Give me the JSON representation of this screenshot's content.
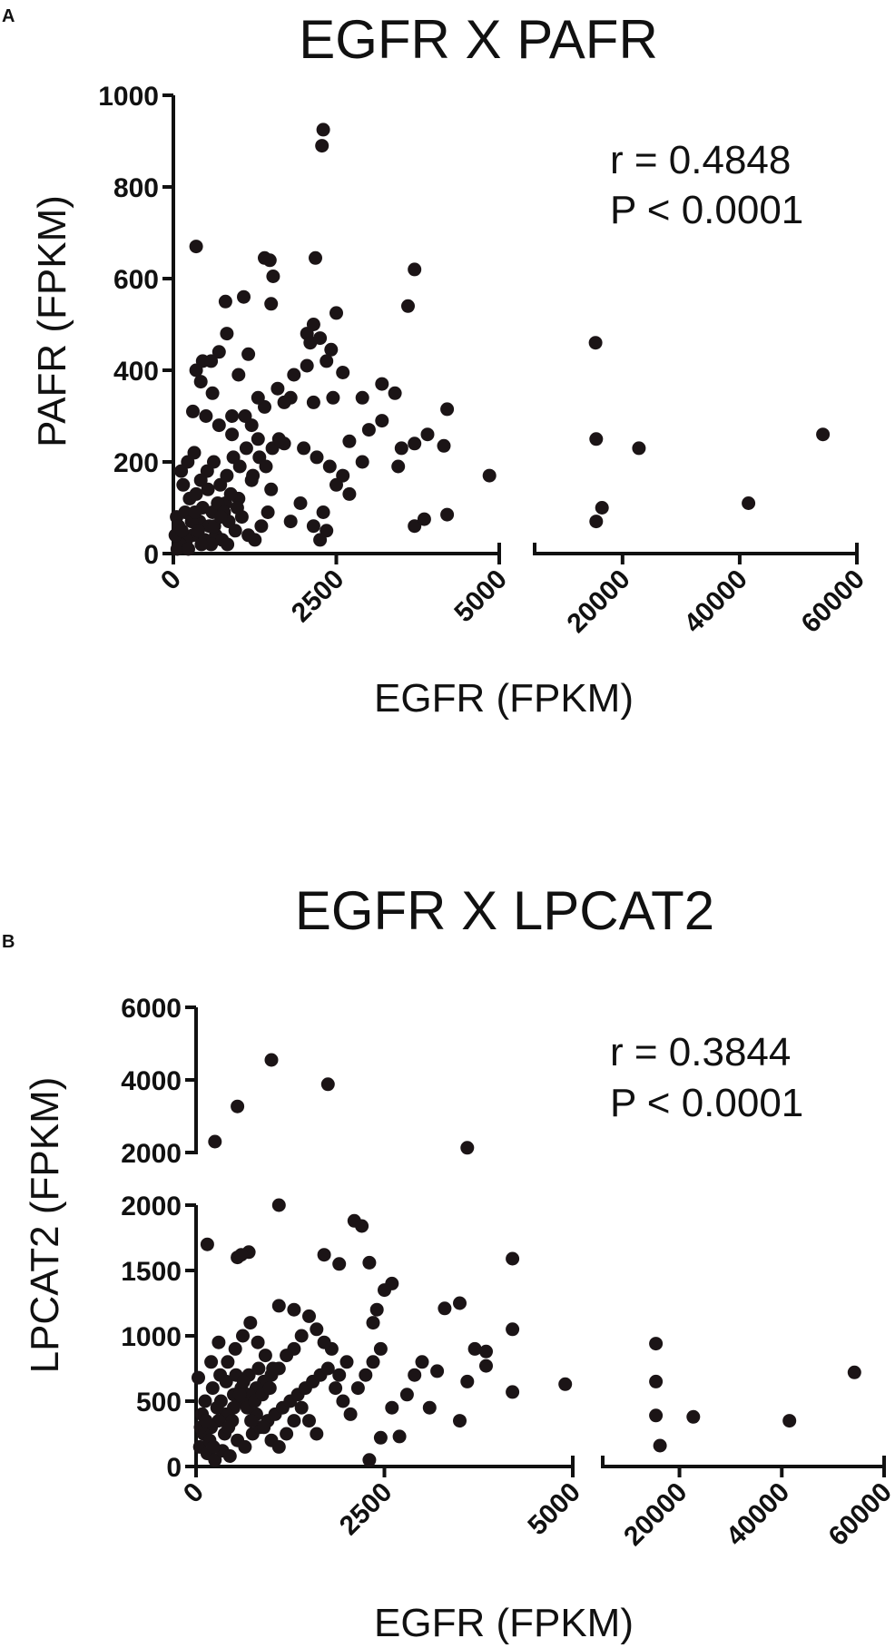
{
  "chart_data": [
    {
      "panel": "A",
      "type": "scatter",
      "title": "EGFR X PAFR",
      "xlabel": "EGFR (FPKM)",
      "ylabel": "PAFR (FPKM)",
      "annotation": [
        "r = 0.4848",
        "P < 0.0001"
      ],
      "x_segments": [
        {
          "range": [
            0,
            5000
          ],
          "ticks": [
            0,
            2500,
            5000
          ]
        },
        {
          "range": [
            5000,
            60000
          ],
          "ticks": [
            20000,
            40000,
            60000
          ]
        }
      ],
      "x_ticklabels": [
        "0",
        "2500",
        "5000",
        "20000",
        "40000",
        "60000"
      ],
      "y_segments": [
        {
          "range": [
            0,
            1000
          ],
          "ticks": [
            0,
            200,
            400,
            600,
            800,
            1000
          ]
        }
      ],
      "y_ticklabels": [
        "0",
        "200",
        "400",
        "600",
        "800",
        "1000"
      ],
      "points": [
        [
          2300,
          925
        ],
        [
          2280,
          890
        ],
        [
          350,
          670
        ],
        [
          1400,
          645
        ],
        [
          1480,
          640
        ],
        [
          2180,
          645
        ],
        [
          1530,
          605
        ],
        [
          3700,
          620
        ],
        [
          1080,
          560
        ],
        [
          800,
          550
        ],
        [
          1500,
          545
        ],
        [
          2500,
          525
        ],
        [
          3600,
          540
        ],
        [
          820,
          480
        ],
        [
          2050,
          480
        ],
        [
          2100,
          460
        ],
        [
          2250,
          470
        ],
        [
          2420,
          445
        ],
        [
          700,
          440
        ],
        [
          1150,
          435
        ],
        [
          2350,
          420
        ],
        [
          450,
          420
        ],
        [
          580,
          420
        ],
        [
          2050,
          410
        ],
        [
          3200,
          370
        ],
        [
          3400,
          350
        ],
        [
          1850,
          390
        ],
        [
          2600,
          395
        ],
        [
          350,
          400
        ],
        [
          420,
          375
        ],
        [
          1000,
          390
        ],
        [
          1600,
          360
        ],
        [
          1800,
          340
        ],
        [
          2150,
          330
        ],
        [
          2450,
          340
        ],
        [
          1400,
          320
        ],
        [
          1700,
          330
        ],
        [
          2900,
          340
        ],
        [
          4200,
          315
        ],
        [
          3200,
          290
        ],
        [
          3000,
          270
        ],
        [
          3900,
          260
        ],
        [
          3500,
          230
        ],
        [
          3700,
          240
        ],
        [
          4150,
          235
        ],
        [
          3450,
          190
        ],
        [
          2700,
          245
        ],
        [
          2900,
          200
        ],
        [
          2600,
          170
        ],
        [
          4850,
          170
        ],
        [
          600,
          350
        ],
        [
          900,
          300
        ],
        [
          1200,
          280
        ],
        [
          1300,
          250
        ],
        [
          1700,
          240
        ],
        [
          2000,
          230
        ],
        [
          2200,
          210
        ],
        [
          2400,
          190
        ],
        [
          2500,
          150
        ],
        [
          2700,
          130
        ],
        [
          2300,
          90
        ],
        [
          2350,
          50
        ],
        [
          2250,
          30
        ],
        [
          1950,
          110
        ],
        [
          1800,
          70
        ],
        [
          2150,
          60
        ],
        [
          1200,
          160
        ],
        [
          1500,
          140
        ],
        [
          1000,
          120
        ],
        [
          800,
          110
        ],
        [
          600,
          90
        ],
        [
          400,
          70
        ],
        [
          300,
          40
        ],
        [
          200,
          30
        ],
        [
          100,
          20
        ],
        [
          50,
          80
        ],
        [
          150,
          150
        ],
        [
          250,
          120
        ],
        [
          350,
          130
        ],
        [
          450,
          100
        ],
        [
          550,
          60
        ],
        [
          650,
          40
        ],
        [
          750,
          30
        ],
        [
          850,
          70
        ],
        [
          950,
          50
        ],
        [
          1050,
          80
        ],
        [
          1150,
          40
        ],
        [
          1250,
          30
        ],
        [
          1350,
          60
        ],
        [
          1450,
          90
        ],
        [
          120,
          180
        ],
        [
          220,
          200
        ],
        [
          320,
          220
        ],
        [
          420,
          160
        ],
        [
          520,
          180
        ],
        [
          620,
          200
        ],
        [
          720,
          150
        ],
        [
          820,
          170
        ],
        [
          920,
          210
        ],
        [
          1020,
          190
        ],
        [
          1120,
          230
        ],
        [
          1220,
          170
        ],
        [
          1320,
          210
        ],
        [
          1420,
          190
        ],
        [
          1520,
          230
        ],
        [
          1620,
          250
        ],
        [
          80,
          60
        ],
        [
          180,
          90
        ],
        [
          280,
          70
        ],
        [
          380,
          50
        ],
        [
          480,
          30
        ],
        [
          580,
          20
        ],
        [
          680,
          110
        ],
        [
          780,
          90
        ],
        [
          880,
          130
        ],
        [
          980,
          100
        ],
        [
          30,
          40
        ],
        [
          60,
          10
        ],
        [
          130,
          50
        ],
        [
          230,
          10
        ],
        [
          330,
          90
        ],
        [
          430,
          20
        ],
        [
          530,
          140
        ],
        [
          630,
          60
        ],
        [
          730,
          80
        ],
        [
          830,
          20
        ],
        [
          900,
          260
        ],
        [
          700,
          280
        ],
        [
          500,
          300
        ],
        [
          300,
          310
        ],
        [
          1100,
          300
        ],
        [
          1300,
          340
        ],
        [
          3700,
          60
        ],
        [
          3850,
          75
        ],
        [
          4200,
          85
        ],
        [
          2150,
          500
        ],
        [
          15400,
          460
        ],
        [
          15500,
          250
        ],
        [
          15500,
          70
        ],
        [
          16500,
          100
        ],
        [
          22800,
          230
        ],
        [
          41500,
          110
        ],
        [
          54200,
          260
        ]
      ]
    },
    {
      "panel": "B",
      "type": "scatter",
      "title": "EGFR X LPCAT2",
      "xlabel": "EGFR (FPKM)",
      "ylabel": "LPCAT2 (FPKM)",
      "annotation": [
        "r = 0.3844",
        "P < 0.0001"
      ],
      "x_segments": [
        {
          "range": [
            0,
            5000
          ],
          "ticks": [
            0,
            2500,
            5000
          ]
        },
        {
          "range": [
            5000,
            60000
          ],
          "ticks": [
            20000,
            40000,
            60000
          ]
        }
      ],
      "x_ticklabels": [
        "0",
        "2500",
        "5000",
        "20000",
        "40000",
        "60000"
      ],
      "y_segments": [
        {
          "range": [
            0,
            2000
          ],
          "ticks": [
            0,
            500,
            1000,
            1500,
            2000
          ]
        },
        {
          "range": [
            2000,
            6000
          ],
          "ticks": [
            2000,
            4000,
            6000
          ]
        }
      ],
      "y_ticklabels": [
        "0",
        "500",
        "1000",
        "1500",
        "2000",
        "2000",
        "4000",
        "6000"
      ],
      "points": [
        [
          1000,
          4550
        ],
        [
          1750,
          3880
        ],
        [
          550,
          3270
        ],
        [
          250,
          2300
        ],
        [
          3600,
          2130
        ],
        [
          1100,
          2000
        ],
        [
          2100,
          1880
        ],
        [
          2200,
          1840
        ],
        [
          150,
          1700
        ],
        [
          700,
          1640
        ],
        [
          550,
          1600
        ],
        [
          600,
          1620
        ],
        [
          1700,
          1620
        ],
        [
          4200,
          1590
        ],
        [
          2300,
          1560
        ],
        [
          1900,
          1550
        ],
        [
          2600,
          1400
        ],
        [
          2500,
          1350
        ],
        [
          3300,
          1210
        ],
        [
          3500,
          1250
        ],
        [
          1100,
          1230
        ],
        [
          1300,
          1200
        ],
        [
          2400,
          1200
        ],
        [
          2350,
          1100
        ],
        [
          4200,
          1050
        ],
        [
          3700,
          900
        ],
        [
          3850,
          880
        ],
        [
          3850,
          770
        ],
        [
          4200,
          570
        ],
        [
          4900,
          630
        ],
        [
          3500,
          350
        ],
        [
          3100,
          450
        ],
        [
          2600,
          450
        ],
        [
          2450,
          220
        ],
        [
          2300,
          50
        ],
        [
          2700,
          230
        ],
        [
          2900,
          700
        ],
        [
          2800,
          550
        ],
        [
          3200,
          730
        ],
        [
          3000,
          800
        ],
        [
          3600,
          650
        ],
        [
          1900,
          700
        ],
        [
          2000,
          800
        ],
        [
          1800,
          900
        ],
        [
          1700,
          950
        ],
        [
          1600,
          1050
        ],
        [
          1500,
          1150
        ],
        [
          1400,
          1000
        ],
        [
          1300,
          900
        ],
        [
          1200,
          850
        ],
        [
          1100,
          750
        ],
        [
          1000,
          700
        ],
        [
          900,
          650
        ],
        [
          800,
          600
        ],
        [
          700,
          550
        ],
        [
          600,
          500
        ],
        [
          500,
          450
        ],
        [
          400,
          400
        ],
        [
          300,
          350
        ],
        [
          200,
          300
        ],
        [
          100,
          250
        ],
        [
          50,
          150
        ],
        [
          150,
          100
        ],
        [
          250,
          50
        ],
        [
          350,
          120
        ],
        [
          450,
          80
        ],
        [
          550,
          200
        ],
        [
          650,
          150
        ],
        [
          750,
          250
        ],
        [
          850,
          300
        ],
        [
          950,
          350
        ],
        [
          1050,
          400
        ],
        [
          1150,
          450
        ],
        [
          1250,
          500
        ],
        [
          1350,
          550
        ],
        [
          1450,
          600
        ],
        [
          1550,
          650
        ],
        [
          1650,
          700
        ],
        [
          1750,
          750
        ],
        [
          1850,
          600
        ],
        [
          1950,
          500
        ],
        [
          2050,
          400
        ],
        [
          2150,
          600
        ],
        [
          2250,
          700
        ],
        [
          2350,
          800
        ],
        [
          2450,
          900
        ],
        [
          120,
          500
        ],
        [
          220,
          600
        ],
        [
          320,
          700
        ],
        [
          420,
          800
        ],
        [
          520,
          900
        ],
        [
          620,
          1000
        ],
        [
          720,
          1100
        ],
        [
          820,
          950
        ],
        [
          920,
          850
        ],
        [
          1020,
          750
        ],
        [
          200,
          800
        ],
        [
          300,
          950
        ],
        [
          400,
          650
        ],
        [
          500,
          550
        ],
        [
          600,
          600
        ],
        [
          700,
          700
        ],
        [
          800,
          400
        ],
        [
          900,
          300
        ],
        [
          1000,
          200
        ],
        [
          1100,
          150
        ],
        [
          1200,
          250
        ],
        [
          1300,
          350
        ],
        [
          1400,
          450
        ],
        [
          1500,
          350
        ],
        [
          1600,
          250
        ],
        [
          80,
          400
        ],
        [
          180,
          200
        ],
        [
          280,
          450
        ],
        [
          380,
          250
        ],
        [
          480,
          350
        ],
        [
          580,
          550
        ],
        [
          680,
          450
        ],
        [
          780,
          500
        ],
        [
          880,
          550
        ],
        [
          980,
          600
        ],
        [
          30,
          680
        ],
        [
          60,
          300
        ],
        [
          130,
          350
        ],
        [
          230,
          150
        ],
        [
          330,
          500
        ],
        [
          430,
          300
        ],
        [
          530,
          700
        ],
        [
          630,
          650
        ],
        [
          730,
          350
        ],
        [
          830,
          750
        ],
        [
          15400,
          940
        ],
        [
          15400,
          650
        ],
        [
          15400,
          390
        ],
        [
          16200,
          160
        ],
        [
          22700,
          380
        ],
        [
          41500,
          350
        ],
        [
          54200,
          720
        ]
      ]
    }
  ]
}
